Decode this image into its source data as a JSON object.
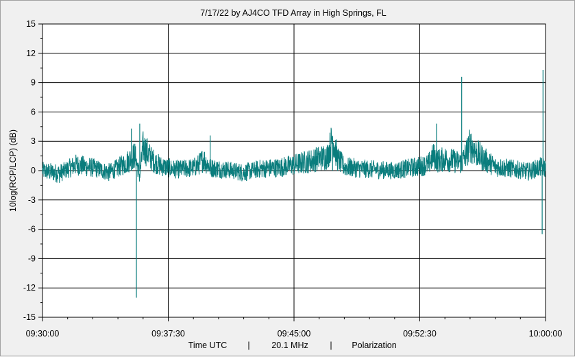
{
  "chart_data": {
    "type": "line",
    "title": "7/17/22  by  AJ4CO TFD Array  in  High Springs, FL",
    "ylabel": "10log(RCP/LCP)  (dB)",
    "xlabel_parts": [
      "Time UTC",
      "|",
      "20.1 MHz",
      "|",
      "Polarization"
    ],
    "ylim": [
      -15,
      15
    ],
    "y_ticks": [
      15,
      12,
      9,
      6,
      3,
      0,
      -3,
      -6,
      -9,
      -12,
      -15
    ],
    "y_tick_labels": [
      "15",
      "12",
      "9",
      "6",
      "3",
      "0",
      "-3",
      "-6",
      "-9",
      "-12",
      "-15"
    ],
    "x_range_minutes": [
      0,
      30
    ],
    "x_ticks_minutes": [
      0,
      7.5,
      15,
      22.5,
      30
    ],
    "x_tick_labels": [
      "09:30:00",
      "09:37:30",
      "09:45:00",
      "09:52:30",
      "10:00:00"
    ],
    "grid": true,
    "line_color": "#0a7d7d",
    "series": [
      {
        "x_minutes": [
          0,
          1,
          2,
          3,
          4,
          5,
          5.5,
          5.8,
          6,
          6.2,
          6.5,
          7,
          8,
          9,
          9.3,
          9.6,
          10,
          11,
          12,
          13,
          14,
          15,
          16,
          17,
          17.3,
          17.6,
          18,
          19,
          20,
          21,
          22,
          23,
          23.3,
          23.6,
          24,
          25,
          25.5,
          25.9,
          26.3,
          27,
          28,
          29,
          29.6,
          29.8,
          30
        ],
        "values": [
          0,
          -0.3,
          0.6,
          0.3,
          -0.2,
          0.8,
          1.6,
          -0.5,
          2.4,
          2.0,
          1.2,
          0.5,
          0.1,
          0.3,
          0.6,
          1.2,
          0.3,
          0.1,
          -0.2,
          0.2,
          0.3,
          0.6,
          1.0,
          1.5,
          3.3,
          1.2,
          0.4,
          0.2,
          0.1,
          0.0,
          0.3,
          0.6,
          1.5,
          1.0,
          1.2,
          0.8,
          2.6,
          1.8,
          1.2,
          0.4,
          0.2,
          -0.1,
          0.3,
          0.4,
          0.2
        ]
      }
    ],
    "spikes": [
      {
        "x_minutes": 5.6,
        "value": -13.0
      },
      {
        "x_minutes": 5.3,
        "value": 4.3
      },
      {
        "x_minutes": 5.8,
        "value": 4.8
      },
      {
        "x_minutes": 10.0,
        "value": 3.6
      },
      {
        "x_minutes": 17.3,
        "value": 3.5
      },
      {
        "x_minutes": 23.5,
        "value": 4.8
      },
      {
        "x_minutes": 25.0,
        "value": 9.6
      },
      {
        "x_minutes": 29.8,
        "value": -6.5
      },
      {
        "x_minutes": 29.85,
        "value": 10.3
      }
    ]
  }
}
